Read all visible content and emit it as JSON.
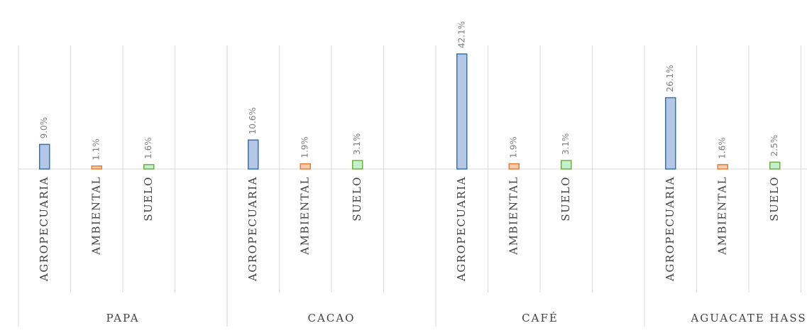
{
  "chart_data": {
    "type": "bar",
    "groups": [
      {
        "name": "PAPA",
        "categories": [
          "AGROPECUARIA",
          "AMBIENTAL",
          "SUELO"
        ],
        "values": [
          9.0,
          1.1,
          1.6
        ],
        "labels": [
          "9.0%",
          "1.1%",
          "1.6%"
        ]
      },
      {
        "name": "CACAO",
        "categories": [
          "AGROPECUARIA",
          "AMBIENTAL",
          "SUELO"
        ],
        "values": [
          10.6,
          1.9,
          3.1
        ],
        "labels": [
          "10.6%",
          "1.9%",
          "3.1%"
        ]
      },
      {
        "name": "CAFÉ",
        "categories": [
          "AGROPECUARIA",
          "AMBIENTAL",
          "SUELO"
        ],
        "values": [
          42.1,
          1.9,
          3.1
        ],
        "labels": [
          "42.1%",
          "1.9%",
          "3.1%"
        ]
      },
      {
        "name": "AGUACATE HASS",
        "categories": [
          "AGROPECUARIA",
          "AMBIENTAL",
          "SUELO"
        ],
        "values": [
          26.1,
          1.6,
          2.5
        ],
        "labels": [
          "26.1%",
          "1.6%",
          "2.5%"
        ]
      }
    ],
    "ylim": [
      0,
      42.1
    ],
    "grid": false,
    "legend": "none",
    "colors": {
      "AGROPECUARIA": {
        "fill": "#b4c7e7",
        "stroke": "#2e75b6"
      },
      "AMBIENTAL": {
        "fill": "#f8cbad",
        "stroke": "#ed7d31"
      },
      "SUELO": {
        "fill": "#c6efce",
        "stroke": "#70ad47"
      }
    }
  }
}
